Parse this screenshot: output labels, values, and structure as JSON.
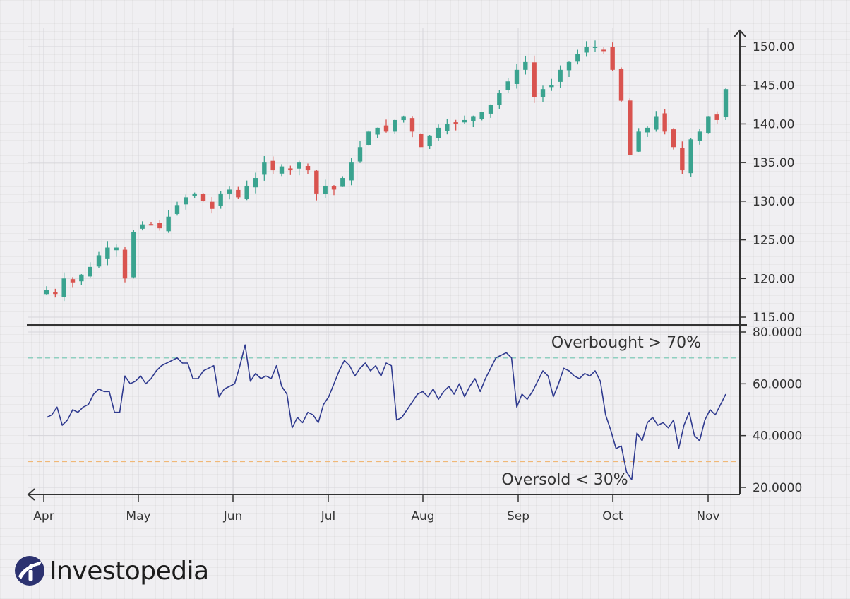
{
  "brand": {
    "name": "Investopedia",
    "icon": "investopedia-logo-icon"
  },
  "colors": {
    "up": "#3aa38f",
    "down": "#d9534f",
    "rsi_line": "#2f3a8f",
    "overbought_line": "#8fcfc0",
    "oversold_line": "#f0b877",
    "axis": "#333333"
  },
  "chart_data": [
    {
      "type": "candlestick",
      "title": "",
      "x_axis": {
        "tick_labels": [
          "Apr",
          "May",
          "Jun",
          "Jul",
          "Aug",
          "Sep",
          "Oct",
          "Nov"
        ]
      },
      "y_axis": {
        "range": [
          115,
          150
        ],
        "tick_values": [
          115,
          120,
          125,
          130,
          135,
          140,
          145,
          150
        ],
        "tick_labels": [
          "115.00",
          "120.00",
          "125.00",
          "130.00",
          "135.00",
          "140.00",
          "145.00",
          "150.00"
        ],
        "position": "right"
      },
      "grid": true,
      "close_approx": [
        118.5,
        118.0,
        120.0,
        119.5,
        120.5,
        121.5,
        123.0,
        124.0,
        124.0,
        120.0,
        126.0,
        127.0,
        127.0,
        126.5,
        128.0,
        129.5,
        130.5,
        131.0,
        130.0,
        129.0,
        131.0,
        131.5,
        130.5,
        132.0,
        133.0,
        135.0,
        134.0,
        134.5,
        134.0,
        135.0,
        134.0,
        131.0,
        132.0,
        131.5,
        133.0,
        135.0,
        137.0,
        139.0,
        139.5,
        139.0,
        140.5,
        141.0,
        139.0,
        137.0,
        138.5,
        139.5,
        140.0,
        140.0,
        140.5,
        141.0,
        141.5,
        142.5,
        144.0,
        145.5,
        147.0,
        148.0,
        143.5,
        144.5,
        145.0,
        147.0,
        148.0,
        149.0,
        150.0,
        150.0,
        149.5,
        147.0,
        143.0,
        136.0,
        139.0,
        139.5,
        141.0,
        139.0,
        137.0,
        134.0,
        138.0,
        139.0,
        141.0,
        140.5,
        144.5
      ]
    },
    {
      "type": "line",
      "title": "",
      "series": [
        {
          "name": "",
          "values": [
            47,
            48,
            51,
            44,
            46,
            50,
            49,
            51,
            52,
            56,
            58,
            57,
            57,
            49,
            49,
            63,
            60,
            61,
            63,
            60,
            62,
            65,
            67,
            68,
            69,
            70,
            68,
            68,
            62,
            62,
            65,
            66,
            67,
            55,
            58,
            59,
            60,
            67,
            75,
            61,
            64,
            62,
            63,
            62,
            67,
            59,
            56,
            43,
            47,
            45,
            49,
            48,
            45,
            52,
            55,
            60,
            65,
            69,
            67,
            63,
            66,
            68,
            65,
            67,
            63,
            68,
            67,
            46,
            47,
            50,
            53,
            56,
            57,
            55,
            58,
            54,
            57,
            59,
            56,
            60,
            55,
            59,
            62,
            57,
            62,
            66,
            70,
            71,
            72,
            70,
            51,
            56,
            54,
            57,
            61,
            65,
            63,
            55,
            60,
            66,
            65,
            63,
            62,
            64,
            63,
            65,
            61,
            48,
            42,
            35,
            36,
            26,
            23,
            41,
            38,
            45,
            47,
            44,
            45,
            43,
            46,
            35,
            44,
            49,
            40,
            38,
            46,
            50,
            48,
            52,
            56
          ]
        }
      ],
      "y_axis": {
        "range": [
          20,
          80
        ],
        "tick_values": [
          20,
          40,
          60,
          80
        ],
        "tick_labels": [
          "20.0000",
          "40.0000",
          "60.0000",
          "80.0000"
        ],
        "position": "right"
      },
      "reference_lines": [
        {
          "value": 70,
          "label": "Overbought > 70%"
        },
        {
          "value": 30,
          "label": "Oversold < 30%"
        }
      ],
      "grid": true
    }
  ]
}
